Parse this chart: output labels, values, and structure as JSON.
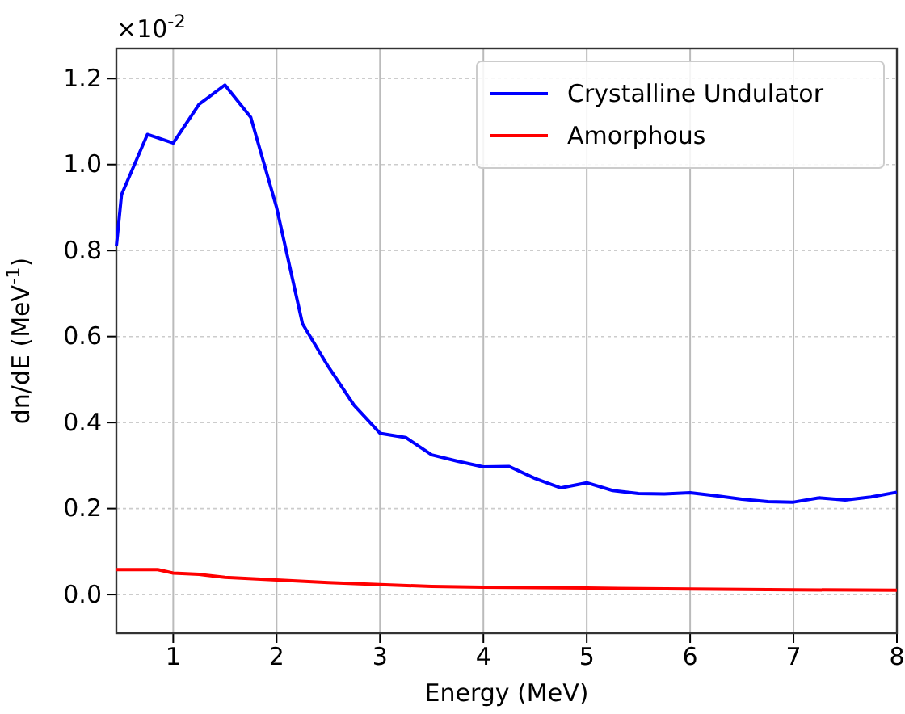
{
  "chart_data": {
    "type": "line",
    "xlabel": "Energy (MeV)",
    "ylabel": "dn/dE (MeV$^{-1}$)",
    "annotations": [
      "×10$^{-2}$"
    ],
    "xlim": [
      0.45,
      8
    ],
    "ylim": [
      -0.09,
      1.27
    ],
    "xticks": [
      1,
      2,
      3,
      4,
      5,
      6,
      7,
      8
    ],
    "yticks": [
      {
        "value": 0,
        "label": "0.0"
      },
      {
        "value": 0.2,
        "label": "0.2"
      },
      {
        "value": 0.4,
        "label": "0.4"
      },
      {
        "value": 0.6,
        "label": "0.6"
      },
      {
        "value": 0.8,
        "label": "0.8"
      },
      {
        "value": 1,
        "label": "1.0"
      },
      {
        "value": 1.2,
        "label": "1.2"
      }
    ],
    "grid": true,
    "legend": "top right",
    "series": [
      {
        "name": "Crystalline Undulator",
        "color": "#0000ff",
        "x": [
          0.45,
          0.5,
          0.75,
          1,
          1.25,
          1.5,
          1.75,
          2,
          2.25,
          2.5,
          2.75,
          3,
          3.25,
          3.5,
          3.75,
          4,
          4.25,
          4.5,
          4.75,
          5,
          5.25,
          5.5,
          5.75,
          6,
          6.25,
          6.5,
          6.75,
          7,
          7.25,
          7.5,
          7.75,
          8
        ],
        "values": [
          0.81,
          0.93,
          1.07,
          1.05,
          1.14,
          1.185,
          1.11,
          0.9,
          0.63,
          0.53,
          0.44,
          0.375,
          0.365,
          0.325,
          0.31,
          0.297,
          0.298,
          0.27,
          0.248,
          0.26,
          0.242,
          0.235,
          0.234,
          0.237,
          0.23,
          0.222,
          0.216,
          0.215,
          0.225,
          0.22,
          0.227,
          0.238
        ]
      },
      {
        "name": "Amorphous",
        "color": "#ff0000",
        "x": [
          0.45,
          0.85,
          1,
          1.25,
          1.5,
          2,
          2.5,
          3,
          3.5,
          4,
          5,
          6,
          7,
          8
        ],
        "values": [
          0.058,
          0.058,
          0.05,
          0.047,
          0.04,
          0.034,
          0.028,
          0.023,
          0.019,
          0.017,
          0.015,
          0.013,
          0.011,
          0.01
        ]
      }
    ]
  }
}
